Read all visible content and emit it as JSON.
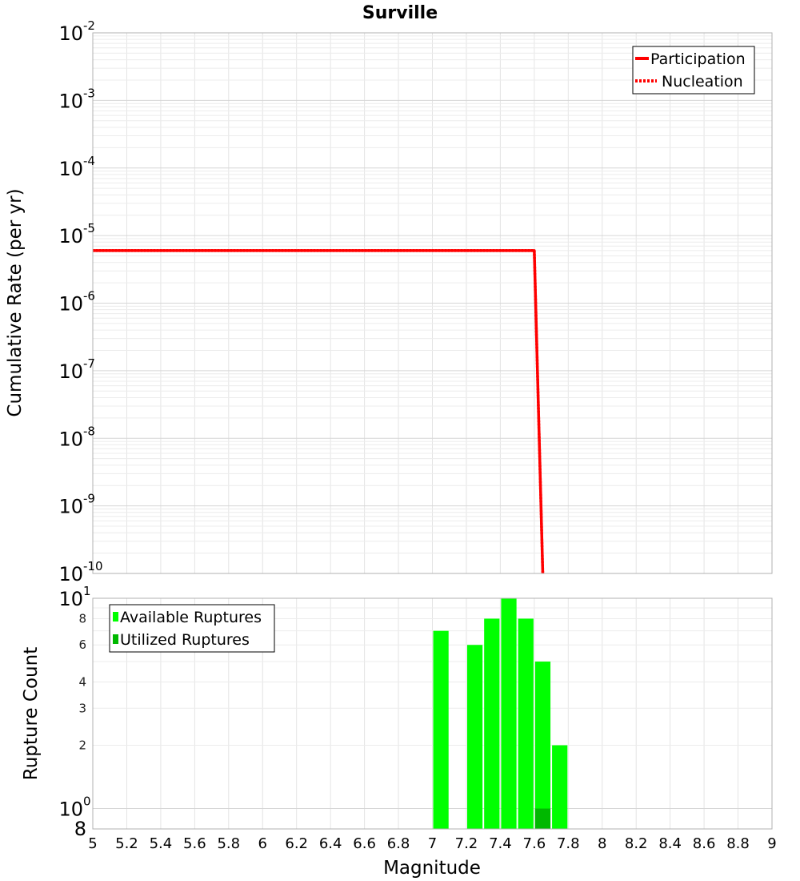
{
  "chart_data": [
    {
      "type": "line",
      "title": "Surville",
      "xlabel": "",
      "ylabel": "Cumulative Rate (per yr)",
      "xlim": [
        5,
        9
      ],
      "ylim": [
        1e-10,
        0.01
      ],
      "yscale": "log",
      "y_ticks": [
        {
          "base": "10",
          "exp": "-2",
          "value": 0.01
        },
        {
          "base": "10",
          "exp": "-3",
          "value": 0.001
        },
        {
          "base": "10",
          "exp": "-4",
          "value": 0.0001
        },
        {
          "base": "10",
          "exp": "-5",
          "value": 1e-05
        },
        {
          "base": "10",
          "exp": "-6",
          "value": 1e-06
        },
        {
          "base": "10",
          "exp": "-7",
          "value": 1e-07
        },
        {
          "base": "10",
          "exp": "-8",
          "value": 1e-08
        },
        {
          "base": "10",
          "exp": "-9",
          "value": 1e-09
        },
        {
          "base": "10",
          "exp": "-10",
          "value": 1e-10
        }
      ],
      "grid": true,
      "legend_position": "top-right",
      "series": [
        {
          "name": "Participation",
          "style": "solid",
          "color": "#ff0000",
          "x": [
            5.0,
            7.6,
            7.65
          ],
          "y": [
            6e-06,
            6e-06,
            1e-10
          ]
        },
        {
          "name": "Nucleation",
          "style": "dotted",
          "color": "#ff0000",
          "x": [
            5.0,
            7.6,
            7.65
          ],
          "y": [
            6e-06,
            6e-06,
            1e-10
          ]
        }
      ]
    },
    {
      "type": "bar",
      "xlabel": "Magnitude",
      "ylabel": "Rupture Count",
      "xlim": [
        5,
        9
      ],
      "ylim": [
        0.8,
        10
      ],
      "yscale": "log",
      "x_ticks": [
        "5",
        "5.2",
        "5.4",
        "5.6",
        "5.8",
        "6",
        "6.2",
        "6.4",
        "6.6",
        "6.8",
        "7",
        "7.2",
        "7.4",
        "7.6",
        "7.8",
        "8",
        "8.2",
        "8.4",
        "8.6",
        "8.8",
        "9"
      ],
      "y_ticks_major": [
        {
          "base": "10",
          "exp": "1",
          "value": 10
        },
        {
          "base": "10",
          "exp": "0",
          "value": 1
        }
      ],
      "y_ticks_minor": [
        {
          "label": "8",
          "value": 8
        },
        {
          "label": "6",
          "value": 6
        },
        {
          "label": "4",
          "value": 4
        },
        {
          "label": "3",
          "value": 3
        },
        {
          "label": "2",
          "value": 2
        }
      ],
      "y_bottom_label": "8",
      "grid": true,
      "legend_position": "top-left",
      "bar_width": 0.1,
      "series": [
        {
          "name": "Available Ruptures",
          "color": "#00ff00",
          "x": [
            7.05,
            7.25,
            7.35,
            7.45,
            7.55,
            7.65,
            7.75
          ],
          "values": [
            7,
            6,
            8,
            10,
            8,
            5,
            2
          ]
        },
        {
          "name": "Utilized Ruptures",
          "color": "#00b800",
          "x": [
            7.65
          ],
          "values": [
            1
          ]
        }
      ]
    }
  ]
}
